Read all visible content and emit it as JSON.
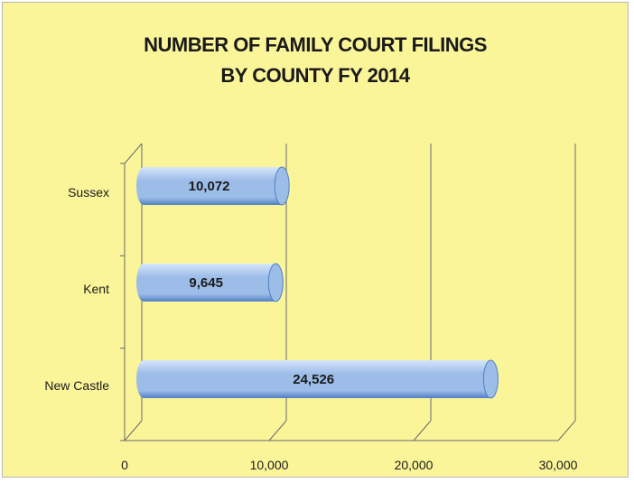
{
  "chart_data": {
    "type": "bar",
    "orientation": "horizontal",
    "style": "3d-cylinder",
    "title_lines": [
      "NUMBER OF FAMILY COURT FILINGS",
      "BY COUNTY FY 2014"
    ],
    "categories": [
      "Sussex",
      "Kent",
      "New Castle"
    ],
    "values": [
      10072,
      9645,
      24526
    ],
    "data_labels": [
      "10,072",
      "9,645",
      "24,526"
    ],
    "x_ticks": [
      0,
      10000,
      20000,
      30000
    ],
    "x_tick_labels": [
      "0",
      "10,000",
      "20,000",
      "30,000"
    ],
    "xlim": [
      0,
      30000
    ],
    "grid": true,
    "legend": "none",
    "colors": {
      "background": "#fbf59a",
      "bar": "#9dbde9",
      "bar_dark": "#4f7fc2",
      "bar_light": "#d6e6fa",
      "grid": "#6a6a6a",
      "text": "#1a1a1a"
    }
  }
}
